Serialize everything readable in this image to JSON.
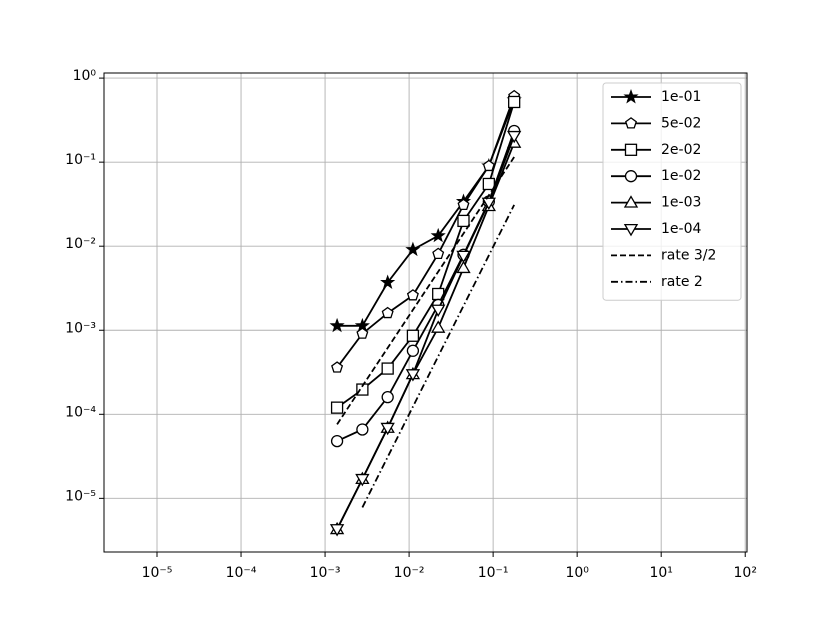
{
  "chart_data": {
    "type": "line",
    "xlog": true,
    "ylog": true,
    "grid": true,
    "legend": "upper right",
    "xlim": [
      2.34e-06,
      105
    ],
    "ylim": [
      2.3e-06,
      1.15
    ],
    "xticks": [
      {
        "value": 1e-05,
        "label": "10⁻⁵"
      },
      {
        "value": 0.0001,
        "label": "10⁻⁴"
      },
      {
        "value": 0.001,
        "label": "10⁻³"
      },
      {
        "value": 0.01,
        "label": "10⁻²"
      },
      {
        "value": 0.1,
        "label": "10⁻¹"
      },
      {
        "value": 1,
        "label": "10⁰"
      },
      {
        "value": 10,
        "label": "10¹"
      },
      {
        "value": 100,
        "label": "10²"
      }
    ],
    "yticks": [
      {
        "value": 1e-05,
        "label": "10⁻⁵"
      },
      {
        "value": 0.0001,
        "label": "10⁻⁴"
      },
      {
        "value": 0.001,
        "label": "10⁻³"
      },
      {
        "value": 0.01,
        "label": "10⁻²"
      },
      {
        "value": 0.1,
        "label": "10⁻¹"
      },
      {
        "value": 1,
        "label": "10⁰"
      }
    ],
    "series": [
      {
        "name": "1e-01",
        "color": "#000000",
        "marker": "star",
        "linestyle": "solid",
        "x": [
          0.00139,
          0.00278,
          0.00556,
          0.0111,
          0.0222,
          0.0444,
          0.0889,
          0.178
        ],
        "values": [
          0.00113,
          0.00113,
          0.0037,
          0.0091,
          0.0133,
          0.034,
          0.09,
          0.55
        ]
      },
      {
        "name": "5e-02",
        "color": "#000000",
        "marker": "pentagon",
        "linestyle": "solid",
        "x": [
          0.00139,
          0.00278,
          0.00556,
          0.0111,
          0.0222,
          0.0444,
          0.0889,
          0.178
        ],
        "values": [
          0.00036,
          0.00091,
          0.0016,
          0.0026,
          0.0081,
          0.031,
          0.09,
          0.61
        ]
      },
      {
        "name": "2e-02",
        "color": "#000000",
        "marker": "square",
        "linestyle": "solid",
        "x": [
          0.00139,
          0.00278,
          0.00556,
          0.0111,
          0.0222,
          0.0444,
          0.0889,
          0.178
        ],
        "values": [
          0.00012,
          0.000197,
          0.00035,
          0.00086,
          0.0027,
          0.02,
          0.055,
          0.52
        ]
      },
      {
        "name": "1e-02",
        "color": "#000000",
        "marker": "circle",
        "linestyle": "solid",
        "x": [
          0.00139,
          0.00278,
          0.00556,
          0.0111,
          0.0222,
          0.0444,
          0.0889,
          0.178
        ],
        "values": [
          4.8e-05,
          6.6e-05,
          0.00016,
          0.00057,
          0.002,
          0.0079,
          0.034,
          0.235
        ]
      },
      {
        "name": "1e-03",
        "color": "#000000",
        "marker": "triangle-up",
        "linestyle": "solid",
        "x": [
          0.00139,
          0.00278,
          0.00556,
          0.0111,
          0.0222,
          0.0444,
          0.0889,
          0.178
        ],
        "values": [
          4.3e-06,
          1.7e-05,
          6.9e-05,
          0.0003,
          0.00107,
          0.0055,
          0.03,
          0.17
        ]
      },
      {
        "name": "1e-04",
        "color": "#000000",
        "marker": "triangle-down",
        "linestyle": "solid",
        "x": [
          0.00139,
          0.00278,
          0.00556,
          0.0111,
          0.0222,
          0.0444,
          0.0889,
          0.178
        ],
        "values": [
          4.3e-06,
          1.7e-05,
          6.9e-05,
          0.0003,
          0.00176,
          0.0077,
          0.033,
          0.205
        ]
      },
      {
        "name": "rate 3/2",
        "color": "#000000",
        "marker": "none",
        "linestyle": "dashed",
        "x": [
          0.00139,
          0.178
        ],
        "values": [
          7.6e-05,
          0.115
        ]
      },
      {
        "name": "rate 2",
        "color": "#000000",
        "marker": "none",
        "linestyle": "dashdot",
        "x": [
          0.00278,
          0.178
        ],
        "values": [
          7.8e-06,
          0.031
        ]
      }
    ]
  }
}
